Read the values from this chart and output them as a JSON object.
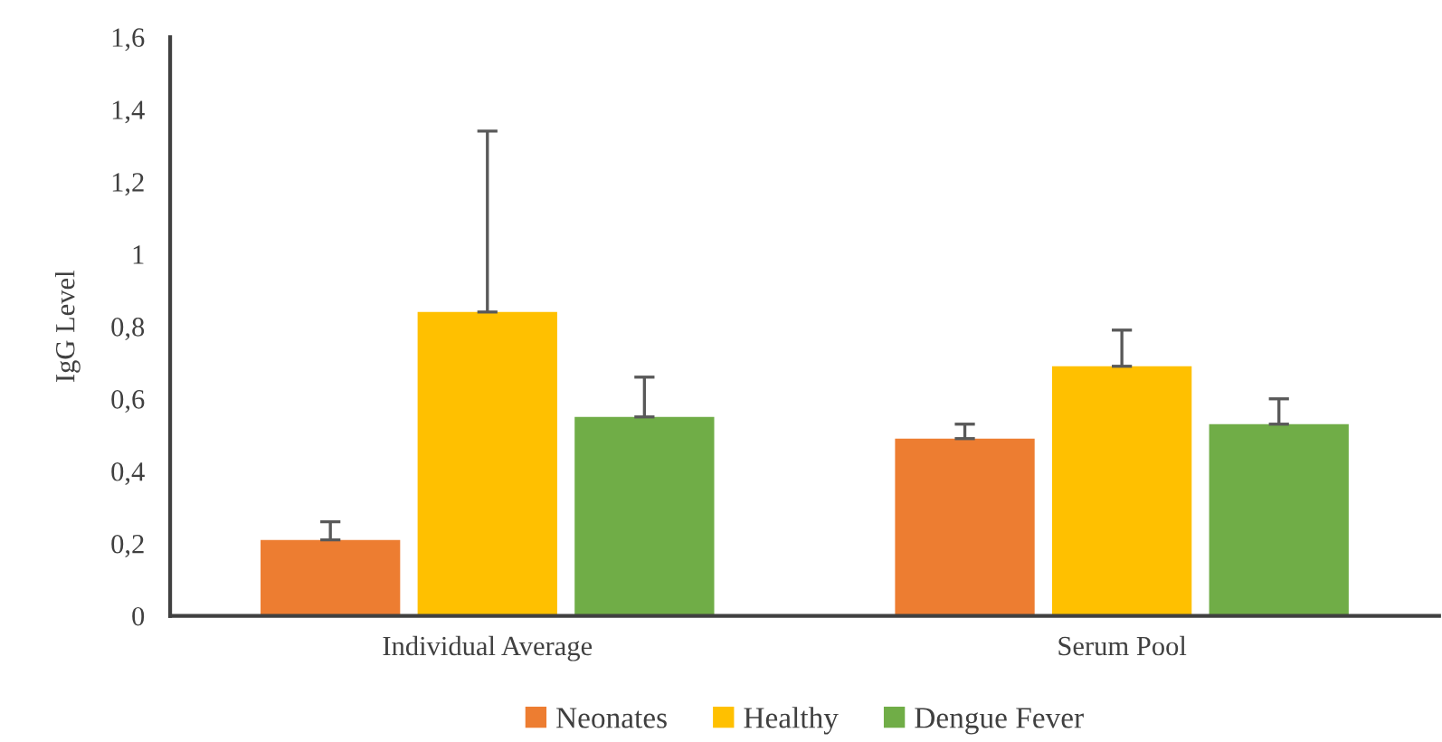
{
  "chart_data": {
    "type": "bar",
    "ylabel": "IgG Level",
    "categories": [
      "Individual Average",
      "Serum Pool"
    ],
    "series": [
      {
        "name": "Neonates",
        "color": "#ed7d31",
        "values": [
          0.21,
          0.49
        ],
        "errors": [
          [
            0.21,
            0.26
          ],
          [
            0.49,
            0.53
          ]
        ]
      },
      {
        "name": "Healthy",
        "color": "#ffc000",
        "values": [
          0.84,
          0.69
        ],
        "errors": [
          [
            0.84,
            1.34
          ],
          [
            0.69,
            0.79
          ]
        ]
      },
      {
        "name": "Dengue Fever",
        "color": "#70ad47",
        "values": [
          0.55,
          0.53
        ],
        "errors": [
          [
            0.55,
            0.66
          ],
          [
            0.53,
            0.6
          ]
        ]
      }
    ],
    "ylim": [
      0,
      1.6
    ],
    "yticks": [
      {
        "value": 0,
        "label": "0"
      },
      {
        "value": 0.2,
        "label": "0,2"
      },
      {
        "value": 0.4,
        "label": "0,4"
      },
      {
        "value": 0.6,
        "label": "0,6"
      },
      {
        "value": 0.8,
        "label": "0,8"
      },
      {
        "value": 1,
        "label": "1"
      },
      {
        "value": 1.2,
        "label": "1,2"
      },
      {
        "value": 1.4,
        "label": "1,4"
      },
      {
        "value": 1.6,
        "label": "1,6"
      }
    ],
    "grid": false,
    "legend": "bottom"
  }
}
